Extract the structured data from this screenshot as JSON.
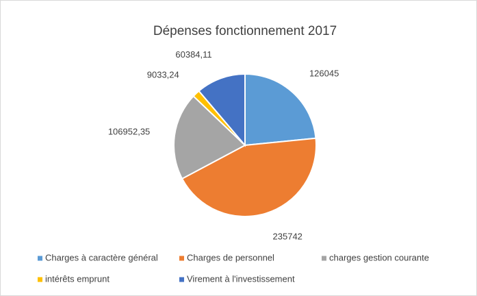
{
  "chart_data": {
    "type": "pie",
    "title": "Dépenses fonctionnement 2017",
    "categories": [
      "Charges à caractère général",
      "Charges de personnel",
      "charges gestion courante",
      "intérêts emprunt",
      "Virement à l'investissement"
    ],
    "values": [
      126045,
      235742,
      106952.35,
      9033.24,
      60384.11
    ],
    "value_labels": [
      "126045",
      "235742",
      "106952,35",
      "9033,24",
      "60384,11"
    ],
    "colors": [
      "#5b9bd5",
      "#ed7d31",
      "#a5a5a5",
      "#ffc000",
      "#4472c4"
    ],
    "legend": "bottom"
  }
}
